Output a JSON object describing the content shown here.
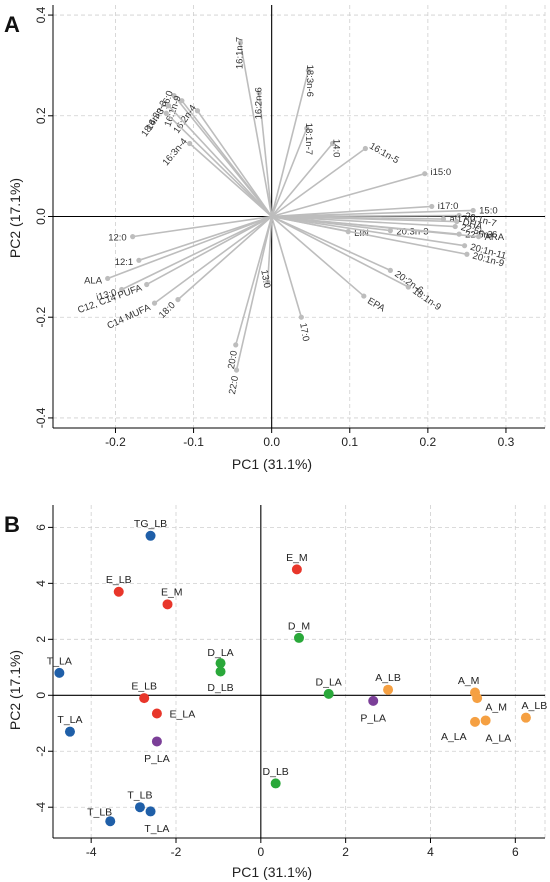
{
  "chart_data": [
    {
      "panel": "A",
      "type": "scatter",
      "subtype": "biplot-loadings",
      "xlabel": "PC1 (31.1%)",
      "ylabel": "PC2 (17.1%)",
      "xlim": [
        -0.28,
        0.35
      ],
      "ylim": [
        -0.42,
        0.42
      ],
      "xticks": [
        -0.2,
        -0.1,
        0.0,
        0.1,
        0.2,
        0.3
      ],
      "yticks": [
        -0.4,
        -0.2,
        0.0,
        0.2,
        0.4
      ],
      "xtick_labels": [
        "-0.2",
        "-0.1",
        "0.0",
        "0.1",
        "0.2",
        "0.3"
      ],
      "ytick_labels": [
        "-0.4",
        "-0.2",
        "0.0",
        "0.2",
        "0.4"
      ],
      "grid": true,
      "vectors": [
        {
          "label": "16:1n-7",
          "x": -0.04,
          "y": 0.345,
          "rot": 90
        },
        {
          "label": "16:2n-6",
          "x": -0.016,
          "y": 0.245,
          "rot": 90
        },
        {
          "label": "18:3n-6",
          "x": 0.047,
          "y": 0.29,
          "rot": -90
        },
        {
          "label": "18:1n-7",
          "x": 0.045,
          "y": 0.175,
          "rot": -90
        },
        {
          "label": "14:0",
          "x": 0.078,
          "y": 0.145,
          "rot": -90
        },
        {
          "label": "16:1n-5",
          "x": 0.12,
          "y": 0.135,
          "rot": -30
        },
        {
          "label": "16:0",
          "x": -0.125,
          "y": 0.24,
          "rot": 70
        },
        {
          "label": "16:1n-9",
          "x": -0.115,
          "y": 0.23,
          "rot": 70
        },
        {
          "label": "16:2n-4",
          "x": -0.095,
          "y": 0.21,
          "rot": 55
        },
        {
          "label": "16:3n-3",
          "x": -0.132,
          "y": 0.22,
          "rot": 60
        },
        {
          "label": "18:4n-3",
          "x": -0.135,
          "y": 0.205,
          "rot": 55
        },
        {
          "label": "16:3n-4",
          "x": -0.105,
          "y": 0.145,
          "rot": 50
        },
        {
          "label": "i15:0",
          "x": 0.196,
          "y": 0.085,
          "rot": 0
        },
        {
          "label": "i17:0",
          "x": 0.205,
          "y": 0.02,
          "rot": 0
        },
        {
          "label": "15:0",
          "x": 0.258,
          "y": 0.012,
          "rot": 0
        },
        {
          "label": "20:1n-7",
          "x": 0.24,
          "y": 0.002,
          "rot": -15
        },
        {
          "label": "ai17:0",
          "x": 0.22,
          "y": -0.005,
          "rot": 0
        },
        {
          "label": "DHA",
          "x": 0.237,
          "y": -0.01,
          "rot": -15
        },
        {
          "label": "22:5n-3",
          "x": 0.235,
          "y": -0.02,
          "rot": -15
        },
        {
          "label": "20:3n-3",
          "x": 0.152,
          "y": -0.028,
          "rot": 0
        },
        {
          "label": "22:5n-6",
          "x": 0.24,
          "y": -0.035,
          "rot": 0
        },
        {
          "label": "LIN",
          "x": 0.098,
          "y": -0.03,
          "rot": 0
        },
        {
          "label": "ARA",
          "x": 0.265,
          "y": -0.04,
          "rot": 0
        },
        {
          "label": "20:1n-11",
          "x": 0.247,
          "y": -0.058,
          "rot": -15
        },
        {
          "label": "20:1n-9",
          "x": 0.25,
          "y": -0.075,
          "rot": -15
        },
        {
          "label": "20:2n-6",
          "x": 0.152,
          "y": -0.107,
          "rot": -35
        },
        {
          "label": "18:1n-9",
          "x": 0.175,
          "y": -0.14,
          "rot": -35
        },
        {
          "label": "EPA",
          "x": 0.118,
          "y": -0.158,
          "rot": -30
        },
        {
          "label": "12:0",
          "x": -0.178,
          "y": -0.04,
          "rot": 0
        },
        {
          "label": "12:1",
          "x": -0.17,
          "y": -0.087,
          "rot": 0
        },
        {
          "label": "ALA",
          "x": -0.21,
          "y": -0.123,
          "rot": 0
        },
        {
          "label": "i13:0",
          "x": -0.192,
          "y": -0.145,
          "rot": 15
        },
        {
          "label": "C12, C14 PUFA",
          "x": -0.16,
          "y": -0.135,
          "rot": 20
        },
        {
          "label": "C14 MUFA",
          "x": -0.15,
          "y": -0.172,
          "rot": 25
        },
        {
          "label": "18:0",
          "x": -0.12,
          "y": -0.165,
          "rot": 45
        },
        {
          "label": "13:0",
          "x": -0.005,
          "y": -0.13,
          "rot": -80
        },
        {
          "label": "17:0",
          "x": 0.038,
          "y": -0.2,
          "rot": -80
        },
        {
          "label": "20:0",
          "x": -0.046,
          "y": -0.255,
          "rot": 80
        },
        {
          "label": "22:0",
          "x": -0.045,
          "y": -0.305,
          "rot": 80
        }
      ]
    },
    {
      "panel": "B",
      "type": "scatter",
      "xlabel": "PC1 (31.1%)",
      "ylabel": "PC2 (17.1%)",
      "xlim": [
        -4.9,
        6.7
      ],
      "ylim": [
        -5.1,
        6.8
      ],
      "xticks": [
        -4,
        -2,
        0,
        2,
        4,
        6
      ],
      "yticks": [
        -4,
        -2,
        0,
        2,
        4,
        6
      ],
      "xtick_labels": [
        "-4",
        "-2",
        "0",
        "2",
        "4",
        "6"
      ],
      "ytick_labels": [
        "-4",
        "-2",
        "0",
        "2",
        "4",
        "6"
      ],
      "grid": true,
      "colors": {
        "T": "#1f5fa8",
        "E": "#e8362a",
        "D": "#2aa83a",
        "P": "#7b3f98",
        "A": "#f5a042"
      },
      "points": [
        {
          "label": "TG_LB",
          "x": -2.6,
          "y": 5.7,
          "group": "T",
          "lx": -2.6,
          "ly": 6.15
        },
        {
          "label": "T_LA",
          "x": -4.75,
          "y": 0.8,
          "group": "T",
          "lx": -4.75,
          "ly": 1.25
        },
        {
          "label": "T_LA",
          "x": -4.5,
          "y": -1.3,
          "group": "T",
          "lx": -4.5,
          "ly": -0.85
        },
        {
          "label": "T_LB",
          "x": -2.85,
          "y": -4.0,
          "group": "T",
          "lx": -2.85,
          "ly": -3.55
        },
        {
          "label": "T_LB",
          "x": -3.55,
          "y": -4.5,
          "group": "T",
          "lx": -3.8,
          "ly": -4.15
        },
        {
          "label": "T_LA",
          "x": -2.6,
          "y": -4.15,
          "group": "T",
          "lx": -2.45,
          "ly": -4.75
        },
        {
          "label": "E_LB",
          "x": -3.35,
          "y": 3.7,
          "group": "E",
          "lx": -3.35,
          "ly": 4.15
        },
        {
          "label": "E_M",
          "x": -2.2,
          "y": 3.25,
          "group": "E",
          "lx": -2.1,
          "ly": 3.7
        },
        {
          "label": "E_M",
          "x": 0.85,
          "y": 4.5,
          "group": "E",
          "lx": 0.85,
          "ly": 4.95
        },
        {
          "label": "E_LB",
          "x": -2.75,
          "y": -0.1,
          "group": "E",
          "lx": -2.75,
          "ly": 0.35
        },
        {
          "label": "E_LA",
          "x": -2.45,
          "y": -0.65,
          "group": "E",
          "lx": -1.85,
          "ly": -0.65
        },
        {
          "label": "D_LA",
          "x": -0.95,
          "y": 1.15,
          "group": "D",
          "lx": -0.95,
          "ly": 1.55
        },
        {
          "label": "D_LB",
          "x": -0.95,
          "y": 0.85,
          "group": "D",
          "lx": -0.95,
          "ly": 0.3
        },
        {
          "label": "D_M",
          "x": 0.9,
          "y": 2.05,
          "group": "D",
          "lx": 0.9,
          "ly": 2.5
        },
        {
          "label": "D_LA",
          "x": 1.6,
          "y": 0.05,
          "group": "D",
          "lx": 1.6,
          "ly": 0.5
        },
        {
          "label": "D_LB",
          "x": 0.35,
          "y": -3.15,
          "group": "D",
          "lx": 0.35,
          "ly": -2.7
        },
        {
          "label": "P_LA",
          "x": -2.45,
          "y": -1.65,
          "group": "P",
          "lx": -2.45,
          "ly": -2.25
        },
        {
          "label": "P_LA",
          "x": 2.65,
          "y": -0.2,
          "group": "P",
          "lx": 2.65,
          "ly": -0.8
        },
        {
          "label": "A_LB",
          "x": 3.0,
          "y": 0.2,
          "group": "A",
          "lx": 3.0,
          "ly": 0.65
        },
        {
          "label": "A_M",
          "x": 5.05,
          "y": 0.1,
          "group": "A",
          "lx": 4.9,
          "ly": 0.55
        },
        {
          "label": "A_M",
          "x": 5.1,
          "y": -0.1,
          "group": "A",
          "lx": 5.55,
          "ly": -0.4
        },
        {
          "label": "A_LA",
          "x": 5.05,
          "y": -0.95,
          "group": "A",
          "lx": 4.55,
          "ly": -1.45
        },
        {
          "label": "A_LA",
          "x": 5.3,
          "y": -0.9,
          "group": "A",
          "lx": 5.6,
          "ly": -1.5
        },
        {
          "label": "A_LB",
          "x": 6.25,
          "y": -0.8,
          "group": "A",
          "lx": 6.45,
          "ly": -0.35
        }
      ]
    }
  ]
}
